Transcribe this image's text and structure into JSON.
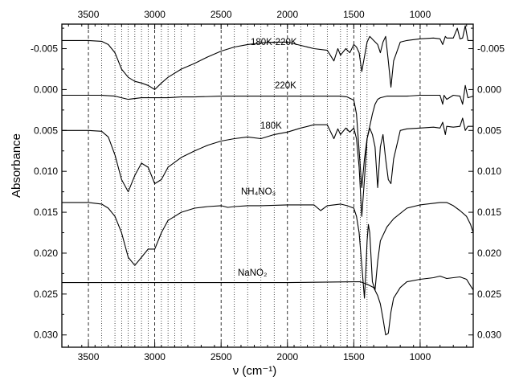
{
  "chart_data": {
    "type": "line",
    "title": "",
    "xlabel": "ν (cm⁻¹)",
    "ylabel": "Absorbance",
    "x_reversed": true,
    "y_reversed": true,
    "xlim": [
      3700,
      600
    ],
    "ylim": [
      -0.008,
      0.0315
    ],
    "x_ticks": [
      "3500",
      "3000",
      "2500",
      "2000",
      "1500",
      "1000"
    ],
    "top_x_ticks": [
      "3500",
      "3000",
      "2500",
      "2000",
      "1500",
      "1000"
    ],
    "y_ticks": [
      "-0.005",
      "0.000",
      "0.005",
      "0.010",
      "0.015",
      "0.020",
      "0.025",
      "0.030"
    ],
    "right_y_ticks": [
      "-0.005",
      "0.000",
      "0.005",
      "0.010",
      "0.015",
      "0.020",
      "0.025",
      "0.030"
    ],
    "gridlines": {
      "dashed_x": [
        3500,
        3000,
        2500,
        2000,
        1500,
        1000
      ],
      "dotted_x": [
        3400,
        3300,
        3250,
        3200,
        3150,
        3100,
        3050,
        2950,
        2900,
        2850,
        2800,
        2700,
        2400,
        2300,
        2200,
        2100,
        1900,
        1800,
        1700,
        1600,
        1550,
        1450,
        1400
      ]
    },
    "series": [
      {
        "name": "180K-220K",
        "x": [
          3700,
          3500,
          3400,
          3350,
          3300,
          3250,
          3200,
          3150,
          3100,
          3050,
          3000,
          2950,
          2900,
          2800,
          2700,
          2600,
          2500,
          2400,
          2300,
          2200,
          2100,
          2000,
          1900,
          1800,
          1700,
          1650,
          1620,
          1600,
          1560,
          1530,
          1500,
          1480,
          1460,
          1440,
          1420,
          1400,
          1380,
          1350,
          1320,
          1300,
          1280,
          1260,
          1240,
          1220,
          1200,
          1150,
          1100,
          1000,
          900,
          850,
          830,
          810,
          800,
          750,
          720,
          700,
          680,
          660,
          640,
          600
        ],
        "y": [
          -0.006,
          -0.006,
          -0.0059,
          -0.0055,
          -0.0045,
          -0.0025,
          -0.0015,
          -0.001,
          -0.0008,
          -0.0005,
          0.0,
          -0.0008,
          -0.0015,
          -0.0025,
          -0.0032,
          -0.004,
          -0.0047,
          -0.0052,
          -0.0055,
          -0.0057,
          -0.0058,
          -0.0058,
          -0.0054,
          -0.005,
          -0.0048,
          -0.0035,
          -0.005,
          -0.0042,
          -0.005,
          -0.0045,
          -0.0055,
          -0.0052,
          -0.0045,
          -0.0022,
          -0.004,
          -0.0058,
          -0.0065,
          -0.006,
          -0.0055,
          -0.0045,
          -0.0058,
          -0.0065,
          -0.0035,
          -0.0003,
          -0.0035,
          -0.0058,
          -0.006,
          -0.0062,
          -0.0063,
          -0.0062,
          -0.0055,
          -0.0065,
          -0.0063,
          -0.0063,
          -0.0075,
          -0.0062,
          -0.0063,
          -0.0078,
          -0.006,
          -0.006
        ]
      },
      {
        "name": "220K",
        "x": [
          3700,
          3500,
          3400,
          3300,
          3250,
          3200,
          3150,
          3100,
          3050,
          3000,
          2950,
          2900,
          2800,
          2700,
          2500,
          2000,
          1700,
          1600,
          1550,
          1500,
          1480,
          1460,
          1440,
          1420,
          1400,
          1380,
          1360,
          1340,
          1320,
          1300,
          1250,
          1200,
          1150,
          1100,
          1000,
          900,
          850,
          830,
          820,
          800,
          750,
          700,
          680,
          660,
          640,
          600
        ],
        "y": [
          0.0007,
          0.0007,
          0.0007,
          0.0008,
          0.001,
          0.0012,
          0.0011,
          0.001,
          0.001,
          0.001,
          0.001,
          0.001,
          0.0009,
          0.0009,
          0.0008,
          0.0008,
          0.0008,
          0.0008,
          0.0009,
          0.0013,
          0.003,
          0.0075,
          0.012,
          0.0085,
          0.006,
          0.0045,
          0.003,
          0.0018,
          0.0012,
          0.001,
          0.0008,
          0.0008,
          0.0008,
          0.0008,
          0.0007,
          0.0007,
          0.0007,
          0.0018,
          0.0007,
          0.0012,
          0.0007,
          0.0008,
          0.0018,
          -0.0005,
          0.001,
          0.0008
        ]
      },
      {
        "name": "180K",
        "x": [
          3700,
          3500,
          3400,
          3350,
          3300,
          3250,
          3200,
          3150,
          3100,
          3050,
          3000,
          2950,
          2900,
          2800,
          2700,
          2600,
          2500,
          2400,
          2300,
          2200,
          2100,
          2000,
          1900,
          1800,
          1700,
          1650,
          1620,
          1600,
          1560,
          1530,
          1500,
          1480,
          1460,
          1440,
          1420,
          1400,
          1380,
          1360,
          1340,
          1320,
          1300,
          1280,
          1260,
          1240,
          1220,
          1200,
          1150,
          1100,
          1000,
          900,
          850,
          830,
          810,
          800,
          750,
          700,
          680,
          660,
          640,
          600
        ],
        "y": [
          0.005,
          0.005,
          0.0051,
          0.0058,
          0.008,
          0.011,
          0.0125,
          0.0105,
          0.009,
          0.0095,
          0.0115,
          0.011,
          0.0095,
          0.0083,
          0.0075,
          0.0068,
          0.0063,
          0.006,
          0.0058,
          0.006,
          0.0055,
          0.0052,
          0.0047,
          0.0043,
          0.0043,
          0.006,
          0.0048,
          0.0055,
          0.0047,
          0.0052,
          0.0047,
          0.006,
          0.0095,
          0.0155,
          0.011,
          0.006,
          0.0047,
          0.0055,
          0.007,
          0.012,
          0.007,
          0.0055,
          0.0085,
          0.011,
          0.0115,
          0.0085,
          0.005,
          0.0048,
          0.0047,
          0.0046,
          0.0047,
          0.004,
          0.0055,
          0.0045,
          0.0046,
          0.0045,
          0.0035,
          0.005,
          0.0045,
          0.0045
        ]
      },
      {
        "name": "NH₄NO₃",
        "x": [
          3700,
          3500,
          3400,
          3350,
          3300,
          3250,
          3200,
          3150,
          3100,
          3050,
          3000,
          2950,
          2900,
          2850,
          2800,
          2700,
          2600,
          2500,
          2450,
          2400,
          2300,
          2200,
          2000,
          1900,
          1800,
          1750,
          1700,
          1600,
          1550,
          1500,
          1480,
          1460,
          1440,
          1420,
          1410,
          1400,
          1390,
          1380,
          1360,
          1340,
          1320,
          1300,
          1250,
          1200,
          1100,
          1000,
          900,
          850,
          800,
          750,
          700,
          650,
          620,
          600
        ],
        "y": [
          0.0138,
          0.0138,
          0.014,
          0.0145,
          0.0155,
          0.0175,
          0.0205,
          0.0215,
          0.0205,
          0.0195,
          0.0195,
          0.0175,
          0.016,
          0.0155,
          0.015,
          0.0145,
          0.0143,
          0.0142,
          0.0144,
          0.0143,
          0.0142,
          0.0142,
          0.0141,
          0.0141,
          0.0141,
          0.0148,
          0.0142,
          0.014,
          0.0142,
          0.0145,
          0.0155,
          0.0175,
          0.0215,
          0.0255,
          0.0225,
          0.0185,
          0.0165,
          0.0175,
          0.0235,
          0.0245,
          0.021,
          0.0185,
          0.0168,
          0.0158,
          0.0145,
          0.0141,
          0.0139,
          0.0138,
          0.0138,
          0.0142,
          0.0148,
          0.0155,
          0.0165,
          0.0175
        ]
      },
      {
        "name": "NaNO₂",
        "x": [
          3700,
          3500,
          3000,
          2500,
          2000,
          1500,
          1450,
          1400,
          1350,
          1320,
          1300,
          1280,
          1260,
          1240,
          1220,
          1200,
          1150,
          1100,
          1000,
          900,
          850,
          800,
          700,
          650,
          620,
          600
        ],
        "y": [
          0.0236,
          0.0236,
          0.0236,
          0.0236,
          0.0236,
          0.0235,
          0.0235,
          0.0238,
          0.0242,
          0.0252,
          0.0262,
          0.028,
          0.03,
          0.0298,
          0.0272,
          0.0255,
          0.0242,
          0.0235,
          0.0232,
          0.023,
          0.0228,
          0.0231,
          0.0229,
          0.0232,
          0.024,
          0.0245
        ]
      }
    ]
  }
}
